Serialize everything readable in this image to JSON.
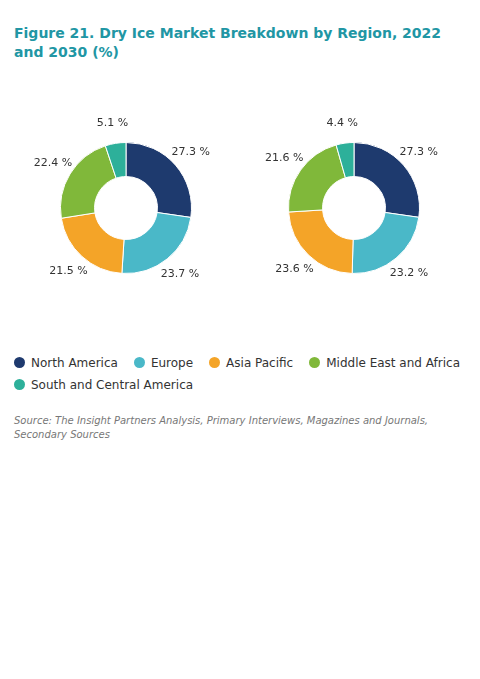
{
  "chart_data": {
    "type": "doughnut",
    "title": "Figure 21. Dry Ice Market Breakdown by Region, 2022 and 2030 (%)",
    "categories": [
      "North America",
      "Europe",
      "Asia Pacific",
      "Middle East and Africa",
      "South and Central America"
    ],
    "colors": [
      "#1e3a6e",
      "#4ab8c8",
      "#f4a428",
      "#80b83a",
      "#2db09a"
    ],
    "series": [
      {
        "values": [
          27.3,
          23.7,
          21.5,
          22.4,
          5.1
        ],
        "value_labels": [
          "27.3 %",
          "23.7 %",
          "21.5 %",
          "22.4 %",
          "5.1 %"
        ]
      },
      {
        "values": [
          27.3,
          23.2,
          23.6,
          21.6,
          4.4
        ],
        "value_labels": [
          "27.3 %",
          "23.2 %",
          "23.6 %",
          "21.6 %",
          "4.4 %"
        ]
      }
    ],
    "data_labels": true,
    "legend": "bottom",
    "annotations": [
      "Source: The Insight Partners Analysis, Primary Interviews, Magazines and Journals, Secondary Sources"
    ]
  }
}
